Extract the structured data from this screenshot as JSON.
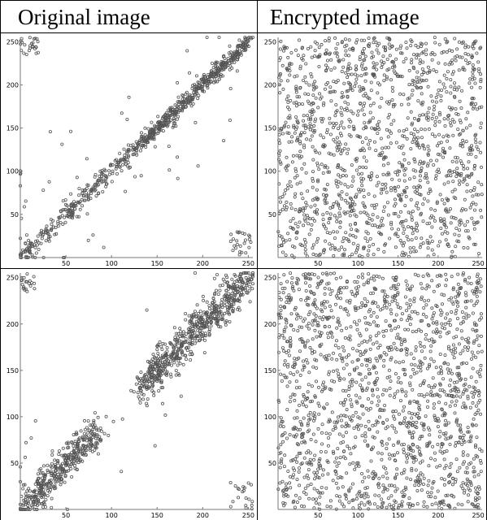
{
  "headers": {
    "left": "Original image",
    "right": "Encrypted image"
  },
  "colors": {
    "point": "#555555",
    "axis": "#777777",
    "border": "#000000"
  },
  "chart_data": [
    {
      "type": "scatter",
      "row": 1,
      "column": "Original image",
      "xlim": [
        0,
        255
      ],
      "ylim": [
        0,
        255
      ],
      "x_ticks": [
        50,
        100,
        150,
        200,
        250
      ],
      "y_ticks": [
        50,
        100,
        150,
        200,
        250
      ],
      "tick_labels_x": [
        "50",
        "100",
        "150",
        "200",
        "250"
      ],
      "tick_labels_y": [
        "50",
        "100",
        "150",
        "200",
        "250"
      ],
      "pattern": "diagonal",
      "clusters": [
        {
          "x0": 2,
          "x1": 120,
          "spread": 6,
          "n": 260
        },
        {
          "x0": 125,
          "x1": 252,
          "spread": 5,
          "n": 520
        }
      ],
      "corners": [
        {
          "x": [
            0,
            20
          ],
          "y": [
            235,
            255
          ],
          "n": 25
        },
        {
          "x": [
            230,
            255
          ],
          "y": [
            0,
            30
          ],
          "n": 25
        }
      ],
      "outliers": 60,
      "grid": false
    },
    {
      "type": "scatter",
      "row": 1,
      "column": "Encrypted image",
      "xlim": [
        0,
        255
      ],
      "ylim": [
        0,
        255
      ],
      "x_ticks": [
        50,
        100,
        150,
        200,
        250
      ],
      "y_ticks": [
        50,
        100,
        150,
        200,
        250
      ],
      "tick_labels_x": [
        "50",
        "100",
        "150",
        "200",
        "250"
      ],
      "tick_labels_y": [
        "50",
        "100",
        "150",
        "200",
        "250"
      ],
      "pattern": "uniform",
      "n": 1500,
      "grid": false
    },
    {
      "type": "scatter",
      "row": 2,
      "column": "Original image",
      "xlim": [
        0,
        255
      ],
      "ylim": [
        0,
        255
      ],
      "x_ticks": [
        50,
        100,
        150,
        200,
        250
      ],
      "y_ticks": [
        50,
        100,
        150,
        200,
        250
      ],
      "tick_labels_x": [
        "50",
        "100",
        "150",
        "200",
        "250"
      ],
      "tick_labels_y": [
        "50",
        "100",
        "150",
        "200",
        "250"
      ],
      "pattern": "diagonal",
      "clusters": [
        {
          "x0": 2,
          "x1": 85,
          "spread": 9,
          "n": 420
        },
        {
          "x0": 130,
          "x1": 252,
          "spread": 10,
          "n": 650
        }
      ],
      "corners": [
        {
          "x": [
            0,
            20
          ],
          "y": [
            235,
            255
          ],
          "n": 20
        },
        {
          "x": [
            230,
            255
          ],
          "y": [
            0,
            30
          ],
          "n": 20
        }
      ],
      "outliers": 30,
      "grid": false
    },
    {
      "type": "scatter",
      "row": 2,
      "column": "Encrypted image",
      "xlim": [
        0,
        255
      ],
      "ylim": [
        0,
        255
      ],
      "x_ticks": [
        50,
        100,
        150,
        200,
        250
      ],
      "y_ticks": [
        50,
        100,
        150,
        200,
        250
      ],
      "tick_labels_x": [
        "50",
        "100",
        "150",
        "200",
        "250"
      ],
      "tick_labels_y": [
        "50",
        "100",
        "150",
        "200",
        "250"
      ],
      "pattern": "uniform",
      "n": 1700,
      "grid": false
    }
  ]
}
